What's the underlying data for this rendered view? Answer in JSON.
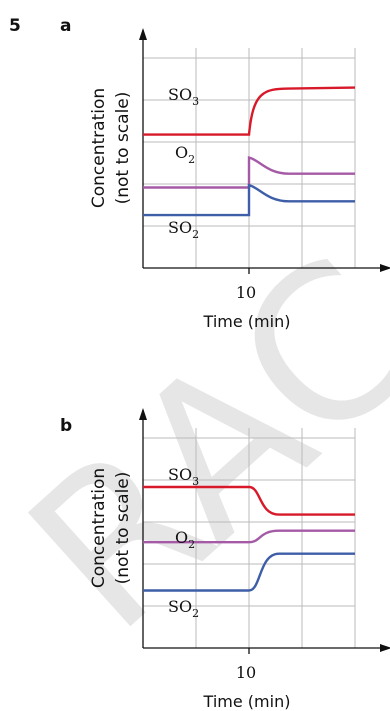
{
  "question_number": "5",
  "watermark": "RAC",
  "colors": {
    "SO3": "#d7192a",
    "O2": "#a55aa6",
    "SO2": "#3e5ea8",
    "axis": "#111111",
    "grid": "#bbbbbb"
  },
  "chart_data": [
    {
      "panel": "a",
      "type": "line",
      "xlabel": "Time (min)",
      "ylabel": [
        "Concentration",
        "(not to scale)"
      ],
      "xticks": [
        10
      ],
      "xlim": [
        0,
        20
      ],
      "ylim": [
        0,
        100
      ],
      "grid": true,
      "series": [
        {
          "name": "SO3",
          "label_main": "SO",
          "label_sub": "3",
          "before": 58,
          "jump": 58,
          "final": 78,
          "change": "rise"
        },
        {
          "name": "O2",
          "label_main": "O",
          "label_sub": "2",
          "before": 35,
          "jump": 48,
          "final": 41,
          "change": "spike-decay"
        },
        {
          "name": "SO2",
          "label_main": "SO",
          "label_sub": "2",
          "before": 23,
          "jump": 36,
          "final": 29,
          "change": "spike-decay"
        }
      ]
    },
    {
      "panel": "b",
      "type": "line",
      "xlabel": "Time (min)",
      "ylabel": [
        "Concentration",
        "(not to scale)"
      ],
      "xticks": [
        10
      ],
      "xlim": [
        0,
        20
      ],
      "ylim": [
        0,
        100
      ],
      "grid": true,
      "series": [
        {
          "name": "SO3",
          "label_main": "SO",
          "label_sub": "3",
          "before": 70,
          "final": 58,
          "change": "fall"
        },
        {
          "name": "O2",
          "label_main": "O",
          "label_sub": "2",
          "before": 46,
          "final": 51,
          "change": "rise"
        },
        {
          "name": "SO2",
          "label_main": "SO",
          "label_sub": "2",
          "before": 25,
          "final": 41,
          "change": "rise"
        }
      ]
    }
  ]
}
